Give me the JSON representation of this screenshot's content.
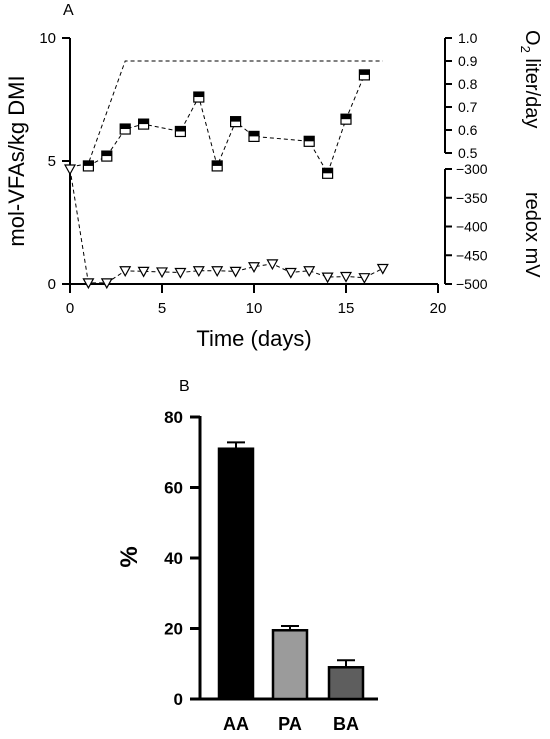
{
  "chart_data": [
    {
      "panel_label": "A",
      "type": "line",
      "xlabel": "Time (days)",
      "xlim": [
        0,
        20
      ],
      "x_ticks": [
        "0",
        "5",
        "10",
        "15",
        "20"
      ],
      "left_axis": {
        "label": "mol-VFAs/kg DMI",
        "ylim": [
          0,
          10
        ],
        "ticks": [
          "0",
          "5",
          "10"
        ]
      },
      "right_axis_upper": {
        "label_prefix": "O",
        "label_sub": "2",
        "label_suffix": " liter/day",
        "ylim": [
          0.5,
          1.0
        ],
        "ticks": [
          "1.0",
          "0.9",
          "0.8",
          "0.7",
          "0.6",
          "0.5"
        ]
      },
      "right_axis_lower": {
        "label": "redox mV",
        "ylim": [
          -500,
          -300
        ],
        "ticks": [
          "-300",
          "-350",
          "-400",
          "-450",
          "-500"
        ]
      },
      "series": [
        {
          "marker": "square-half-filled",
          "axis": "left",
          "x": [
            1,
            2,
            3,
            4,
            6,
            7,
            8,
            9,
            10,
            13,
            14,
            15,
            16
          ],
          "y": [
            4.8,
            5.2,
            6.3,
            6.5,
            6.2,
            7.6,
            4.8,
            6.6,
            6.0,
            5.8,
            4.5,
            6.7,
            8.5
          ]
        },
        {
          "marker": "none",
          "axis": "upper-right",
          "x": [
            0,
            1,
            3,
            17
          ],
          "y": [
            0.5,
            0.5,
            0.9,
            0.9
          ]
        },
        {
          "marker": "triangle-down-open",
          "axis": "lower-right",
          "x": [
            0,
            1,
            2,
            3,
            4,
            5,
            6,
            7,
            8,
            9,
            10,
            11,
            12,
            13,
            14,
            15,
            16,
            17
          ],
          "y": [
            -300,
            -498,
            -498,
            -477,
            -478,
            -479,
            -480,
            -477,
            -477,
            -478,
            -470,
            -465,
            -480,
            -477,
            -488,
            -487,
            -489,
            -473
          ]
        }
      ]
    },
    {
      "panel_label": "B",
      "type": "bar",
      "ylabel": "%",
      "ylim": [
        0,
        80
      ],
      "y_ticks": [
        "0",
        "20",
        "40",
        "60",
        "80"
      ],
      "categories": [
        "AA",
        "PA",
        "BA"
      ],
      "values": [
        71,
        19.5,
        9
      ],
      "errors": [
        1.8,
        1.2,
        2
      ],
      "colors": [
        "#000000",
        "#9b9b9b",
        "#5e5e5e"
      ]
    }
  ]
}
